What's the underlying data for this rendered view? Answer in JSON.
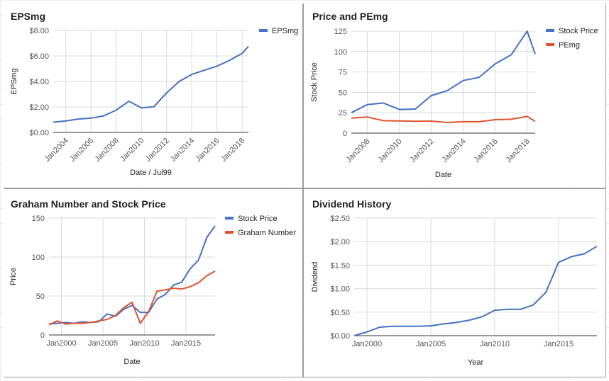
{
  "chart_data": [
    {
      "id": "eps",
      "type": "line",
      "title": "EPSmg",
      "xlabel": "Date / Jul99",
      "ylabel": "EPSmg",
      "x_is_date": true,
      "xlim": [
        2003.0,
        2018.5
      ],
      "ylim": [
        0,
        8
      ],
      "yticks": [
        {
          "value": 0,
          "label": "$0.00"
        },
        {
          "value": 2,
          "label": "$2.00"
        },
        {
          "value": 4,
          "label": "$4.00"
        },
        {
          "value": 6,
          "label": "$6.00"
        },
        {
          "value": 8,
          "label": "$8.00"
        }
      ],
      "xticks": [
        {
          "value": 2004,
          "label": "Jan2004"
        },
        {
          "value": 2006,
          "label": "Jan2006"
        },
        {
          "value": 2008,
          "label": "Jan2008"
        },
        {
          "value": 2010,
          "label": "Jan2010"
        },
        {
          "value": 2012,
          "label": "Jan2012"
        },
        {
          "value": 2014,
          "label": "Jan2014"
        },
        {
          "value": 2016,
          "label": "Jan2016"
        },
        {
          "value": 2018,
          "label": "Jan2018"
        }
      ],
      "rotate_xticks": true,
      "grid": true,
      "legend_position": "right",
      "series": [
        {
          "name": "EPSmg",
          "color": "#4472C4",
          "x": [
            2003.0,
            2004.0,
            2005.0,
            2006.0,
            2007.0,
            2008.0,
            2009.0,
            2010.0,
            2011.0,
            2012.0,
            2013.0,
            2014.0,
            2015.0,
            2016.0,
            2017.0,
            2018.0,
            2018.5
          ],
          "y": [
            0.8,
            0.9,
            1.05,
            1.12,
            1.3,
            1.75,
            2.45,
            1.92,
            2.02,
            3.1,
            4.0,
            4.55,
            4.88,
            5.2,
            5.65,
            6.2,
            6.75
          ]
        }
      ]
    },
    {
      "id": "price_pe",
      "type": "line",
      "title": "Price and PEmg",
      "xlabel": "Date",
      "ylabel": "Stock Price",
      "x_is_date": true,
      "xlim": [
        2007.0,
        2018.5
      ],
      "ylim": [
        0,
        125
      ],
      "yticks": [
        {
          "value": 0,
          "label": "0"
        },
        {
          "value": 25,
          "label": "25"
        },
        {
          "value": 50,
          "label": "50"
        },
        {
          "value": 75,
          "label": "75"
        },
        {
          "value": 100,
          "label": "100"
        },
        {
          "value": 125,
          "label": "125"
        }
      ],
      "xticks": [
        {
          "value": 2008,
          "label": "Jan2008"
        },
        {
          "value": 2010,
          "label": "Jan2010"
        },
        {
          "value": 2012,
          "label": "Jan2012"
        },
        {
          "value": 2014,
          "label": "Jan2014"
        },
        {
          "value": 2016,
          "label": "Jan2016"
        },
        {
          "value": 2018,
          "label": "Jan2018"
        }
      ],
      "rotate_xticks": true,
      "grid": true,
      "legend_position": "right",
      "series": [
        {
          "name": "Stock Price",
          "color": "#4472C4",
          "x": [
            2007.0,
            2008.0,
            2009.0,
            2010.0,
            2011.0,
            2012.0,
            2013.0,
            2014.0,
            2015.0,
            2016.0,
            2017.0,
            2018.0,
            2018.5
          ],
          "y": [
            25,
            35,
            37,
            29,
            29.5,
            46,
            52,
            64.5,
            68.5,
            85,
            96,
            125,
            97
          ]
        },
        {
          "name": "PEmg",
          "color": "#E0522F",
          "x": [
            2007.0,
            2008.0,
            2009.0,
            2010.0,
            2011.0,
            2012.0,
            2013.0,
            2014.0,
            2015.0,
            2016.0,
            2017.0,
            2018.0,
            2018.5
          ],
          "y": [
            18.5,
            19.8,
            15.3,
            15.0,
            14.5,
            14.8,
            13.0,
            14.0,
            14.0,
            16.5,
            17.0,
            20.5,
            14.5
          ]
        }
      ]
    },
    {
      "id": "graham",
      "type": "line",
      "title": "Graham Number and Stock Price",
      "xlabel": "Date",
      "ylabel": "Price",
      "x_is_date": true,
      "xlim": [
        1998.5,
        2018.5
      ],
      "ylim": [
        0,
        150
      ],
      "yticks": [
        {
          "value": 0,
          "label": "0"
        },
        {
          "value": 50,
          "label": "50"
        },
        {
          "value": 100,
          "label": "100"
        },
        {
          "value": 150,
          "label": "150"
        }
      ],
      "xticks": [
        {
          "value": 2000,
          "label": "Jan2000"
        },
        {
          "value": 2005,
          "label": "Jan2005"
        },
        {
          "value": 2010,
          "label": "Jan2010"
        },
        {
          "value": 2015,
          "label": "Jan2015"
        }
      ],
      "rotate_xticks": false,
      "grid": true,
      "legend_position": "right",
      "series": [
        {
          "name": "Stock Price",
          "color": "#4472C4",
          "x": [
            1998.5,
            1999.5,
            2000.5,
            2001.5,
            2002.5,
            2003.5,
            2004.5,
            2005.5,
            2006.5,
            2007.5,
            2008.5,
            2009.5,
            2010.5,
            2011.5,
            2012.5,
            2013.5,
            2014.5,
            2015.5,
            2016.5,
            2017.5,
            2018.5
          ],
          "y": [
            14,
            15,
            16,
            15,
            17,
            16,
            17,
            27,
            24,
            33,
            38,
            29,
            29,
            46,
            52,
            64,
            68,
            85,
            96,
            125,
            140
          ]
        },
        {
          "name": "Graham Number",
          "color": "#E0522F",
          "x": [
            1998.5,
            1999.5,
            2000.5,
            2001.5,
            2002.5,
            2003.5,
            2004.5,
            2005.5,
            2006.5,
            2007.5,
            2008.5,
            2009.5,
            2010.5,
            2011.5,
            2012.5,
            2013.5,
            2014.5,
            2015.5,
            2016.5,
            2017.5,
            2018.5
          ],
          "y": [
            13,
            18,
            14,
            15,
            15,
            16,
            18,
            20,
            25,
            35,
            42,
            15,
            30,
            56,
            58,
            60,
            59,
            62,
            67,
            76,
            82
          ]
        }
      ]
    },
    {
      "id": "dividend",
      "type": "line",
      "title": "Dividend History",
      "xlabel": "Year",
      "ylabel": "Dividend",
      "x_is_date": true,
      "xlim": [
        1999,
        2018
      ],
      "ylim": [
        0,
        2.5
      ],
      "yticks": [
        {
          "value": 0,
          "label": "$0.00"
        },
        {
          "value": 0.5,
          "label": "$0.50"
        },
        {
          "value": 1.0,
          "label": "$1.00"
        },
        {
          "value": 1.5,
          "label": "$1.50"
        },
        {
          "value": 2.0,
          "label": "$2.00"
        },
        {
          "value": 2.5,
          "label": "$2.50"
        }
      ],
      "xticks": [
        {
          "value": 2000,
          "label": "Jan2000"
        },
        {
          "value": 2005,
          "label": "Jan2005"
        },
        {
          "value": 2010,
          "label": "Jan2010"
        },
        {
          "value": 2015,
          "label": "Jan2015"
        }
      ],
      "rotate_xticks": false,
      "grid": true,
      "legend_position": "none",
      "series": [
        {
          "name": "",
          "color": "#4472C4",
          "x": [
            1999,
            2000,
            2001,
            2002,
            2003,
            2004,
            2005,
            2006,
            2007,
            2008,
            2009,
            2010,
            2011,
            2012,
            2013,
            2014,
            2015,
            2016,
            2017,
            2018
          ],
          "y": [
            0.0,
            0.08,
            0.18,
            0.2,
            0.2,
            0.2,
            0.21,
            0.25,
            0.28,
            0.33,
            0.4,
            0.54,
            0.56,
            0.56,
            0.65,
            0.92,
            1.56,
            1.68,
            1.74,
            1.9
          ]
        }
      ]
    }
  ],
  "colors": {
    "panel_border": "#9e9e9e",
    "grid": "#d9d9d9",
    "axis": "#333333",
    "text": "#222222",
    "muted": "#555555"
  }
}
